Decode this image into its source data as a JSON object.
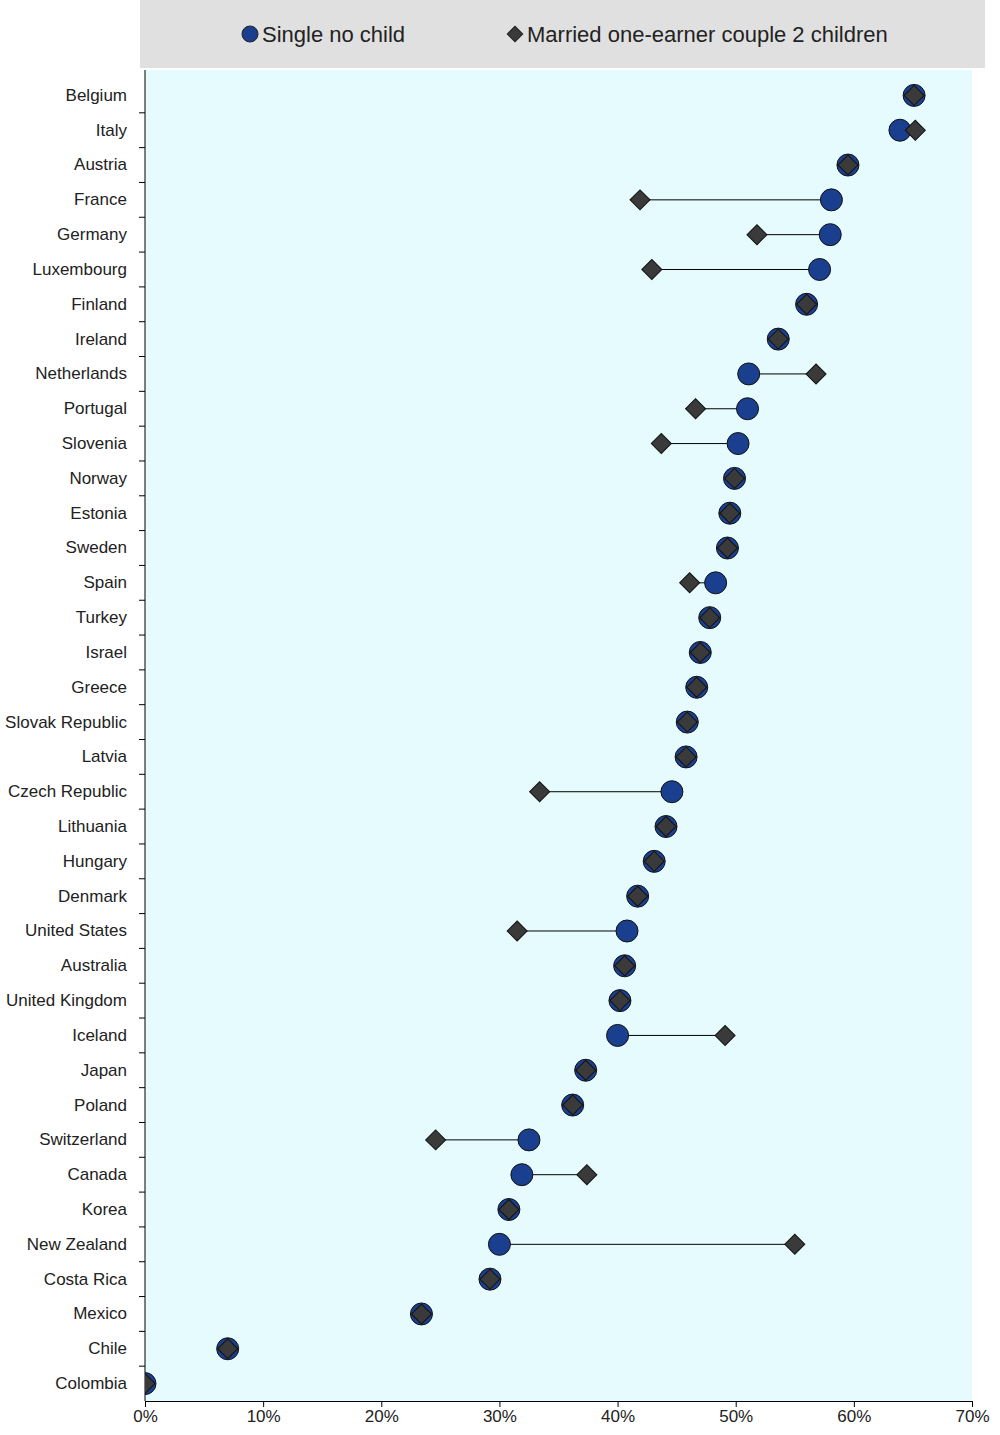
{
  "chart_data": {
    "type": "dot",
    "orientation": "horizontal",
    "legend": "top",
    "grid": false,
    "categories": [
      "Belgium",
      "Italy",
      "Austria",
      "France",
      "Germany",
      "Luxembourg",
      "Finland",
      "Ireland",
      "Netherlands",
      "Portugal",
      "Slovenia",
      "Norway",
      "Estonia",
      "Sweden",
      "Spain",
      "Turkey",
      "Israel",
      "Greece",
      "Slovak Republic",
      "Latvia",
      "Czech Republic",
      "Lithuania",
      "Hungary",
      "Denmark",
      "United States",
      "Australia",
      "United Kingdom",
      "Iceland",
      "Japan",
      "Poland",
      "Switzerland",
      "Canada",
      "Korea",
      "New Zealand",
      "Costa Rica",
      "Mexico",
      "Chile",
      "Colombia"
    ],
    "series": [
      {
        "name": "Single no child",
        "color": "#1b3f8f",
        "marker": "circle",
        "values": [
          65.1,
          63.9,
          59.5,
          58.1,
          58.0,
          57.1,
          56.0,
          53.6,
          51.1,
          51.0,
          50.2,
          49.9,
          49.5,
          49.3,
          48.3,
          47.8,
          47.0,
          46.7,
          45.9,
          45.8,
          44.6,
          44.1,
          43.1,
          41.7,
          40.8,
          40.6,
          40.2,
          40.0,
          37.3,
          36.2,
          32.5,
          31.9,
          30.8,
          30.0,
          29.2,
          23.4,
          7.0,
          0
        ]
      },
      {
        "name": "Married one-earner couple 2 children",
        "color": "#3a3a3a",
        "marker": "diamond",
        "values": [
          65.1,
          65.2,
          59.5,
          41.9,
          51.8,
          42.9,
          56.0,
          53.6,
          56.8,
          46.6,
          43.7,
          49.9,
          49.5,
          49.3,
          46.1,
          47.8,
          47.0,
          46.7,
          45.9,
          45.8,
          33.4,
          44.1,
          43.1,
          41.7,
          31.5,
          40.6,
          40.2,
          49.1,
          37.3,
          36.2,
          24.6,
          37.4,
          30.8,
          55.0,
          29.2,
          23.4,
          7.0,
          0
        ]
      }
    ],
    "xlim": [
      0,
      70
    ],
    "xticks": [
      {
        "value": 0,
        "label": "0%"
      },
      {
        "value": 10,
        "label": "10%"
      },
      {
        "value": 20,
        "label": "20%"
      },
      {
        "value": 30,
        "label": "30%"
      },
      {
        "value": 40,
        "label": "40%"
      },
      {
        "value": 50,
        "label": "50%"
      },
      {
        "value": 60,
        "label": "60%"
      },
      {
        "value": 70,
        "label": "70%"
      }
    ]
  }
}
